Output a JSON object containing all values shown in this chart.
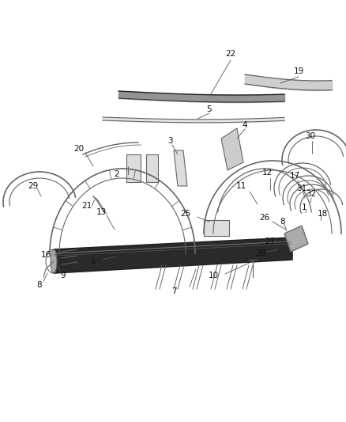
{
  "bg_color": "#ffffff",
  "line_color": "#666666",
  "dark_color": "#222222",
  "mid_color": "#999999",
  "label_color": "#111111",
  "figure_width": 4.38,
  "figure_height": 5.33,
  "dpi": 100
}
